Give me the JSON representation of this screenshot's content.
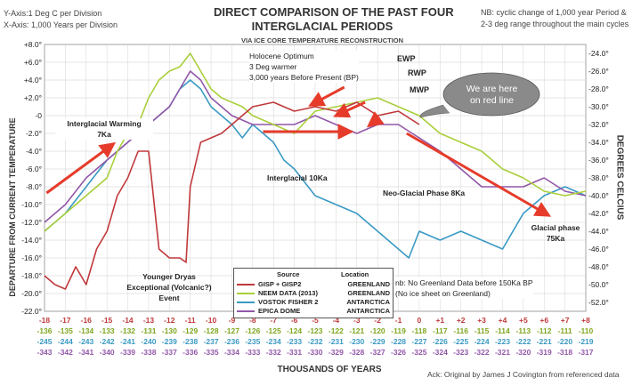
{
  "header": {
    "title_line1": "DIRECT COMPARISON OF THE PAST FOUR",
    "title_line2": "INTERGLACIAL PERIODS",
    "subtitle": "VIA ICE CORE TEMPERATURE RECONSTRUCTION",
    "scale_note_y": "Y-Axis:1 Deg C per Division",
    "scale_note_x": "X-Axis: 1,000 Years per Division",
    "nb_note_line1": "NB: cyclic change of 1,000 year Period &",
    "nb_note_line2": "2-3 deg range throughout the main cycles"
  },
  "footer": {
    "xlabel": "THOUSANDS OF YEARS",
    "ack": "Ack: Original by James J Covington from referenced data"
  },
  "colors": {
    "gisp": "#c0393b",
    "neem": "#a9cf3a",
    "vostok": "#3a9ac4",
    "epica": "#9257a8",
    "arrow": "#e63b2a",
    "background": "#ffffff"
  },
  "chart_data": {
    "type": "line",
    "title": "DIRECT COMPARISON OF THE PAST FOUR INTERGLACIAL PERIODS",
    "subtitle": "VIA ICE CORE TEMPERATURE RECONSTRUCTION",
    "xlabel": "THOUSANDS OF YEARS",
    "ylabel": "DEPARTURE FROM CURRENT TEMPERATURE",
    "ylabel_right": "DEGREES CELCIUS",
    "x_range": [
      -18,
      8
    ],
    "ylim": [
      -22,
      8
    ],
    "grid": true,
    "y_ticks": [
      "+8.0°",
      "+6.0°",
      "+4.0°",
      "+2.0°",
      "-0",
      "-2.0°",
      "-4.0°",
      "-6.0°",
      "-8.0°",
      "-10.0°",
      "-12.0°",
      "-14.0°",
      "-16.0°",
      "-18.0°",
      "-20.0°",
      "-22.0°"
    ],
    "y_ticks_right": [
      "-24.0°",
      "-26.0°",
      "-28.0°",
      "-30.0°",
      "-32.0°",
      "-34.0°",
      "-36.0°",
      "-38.0°",
      "-40.0°",
      "-42.0°",
      "-44.0°",
      "-46.0°",
      "-48.0°",
      "-50.0°",
      "-52.0°"
    ],
    "x_tick_rows": [
      {
        "series": "GISP + GISP2",
        "labels": [
          "-18",
          "-17",
          "-16",
          "-15",
          "-14",
          "-13",
          "-12",
          "-11",
          "-10",
          "-9",
          "-8",
          "-7",
          "-6",
          "-5",
          "-4",
          "-3",
          "-2",
          "-1",
          "0",
          "+1",
          "+2",
          "+3",
          "+4",
          "+5",
          "+6",
          "+7",
          "+8"
        ]
      },
      {
        "series": "NEEM DATA (2013)",
        "labels": [
          "-136",
          "-135",
          "-134",
          "-133",
          "-132",
          "-131",
          "-130",
          "-129",
          "-128",
          "-127",
          "-126",
          "-125",
          "-124",
          "-123",
          "-122",
          "-121",
          "-120",
          "-119",
          "-118",
          "-117",
          "-116",
          "-115",
          "-114",
          "-113",
          "-112",
          "-111",
          "-110"
        ]
      },
      {
        "series": "VOSTOK FISHER 2",
        "labels": [
          "-245",
          "-244",
          "-243",
          "-242",
          "-241",
          "-240",
          "-239",
          "-238",
          "-237",
          "-236",
          "-235",
          "-234",
          "-233",
          "-232",
          "-231",
          "-230",
          "-229",
          "-228",
          "-227",
          "-226",
          "-225",
          "-224",
          "-223",
          "-222",
          "-221",
          "-220",
          "-219"
        ]
      },
      {
        "series": "EPICA DOME",
        "labels": [
          "-343",
          "-342",
          "-341",
          "-340",
          "-339",
          "-338",
          "-337",
          "-336",
          "-335",
          "-334",
          "-333",
          "-332",
          "-331",
          "-330",
          "-329",
          "-328",
          "-327",
          "-326",
          "-325",
          "-324",
          "-323",
          "-322",
          "-321",
          "-320",
          "-319",
          "-318",
          "-317"
        ]
      }
    ],
    "legend": {
      "header_source": "Source",
      "header_location": "Location",
      "entries": [
        {
          "name": "GISP + GISP2",
          "location": "GREENLAND"
        },
        {
          "name": "NEEM DATA (2013)",
          "location": "GREENLAND"
        },
        {
          "name": "VOSTOK FISHER 2",
          "location": "ANTARCTICA"
        },
        {
          "name": "EPICA DOME",
          "location": "ANTARCTICA"
        }
      ]
    },
    "series": [
      {
        "name": "GISP + GISP2",
        "x": [
          -18,
          -17.5,
          -17,
          -16.5,
          -16,
          -15.5,
          -15,
          -14.5,
          -14,
          -13.5,
          -13,
          -12.5,
          -12,
          -11.5,
          -11.2,
          -11,
          -10.5,
          -10,
          -9.5,
          -9,
          -8,
          -7,
          -6,
          -5,
          -4,
          -3,
          -2,
          -1,
          0
        ],
        "y": [
          -18,
          -19,
          -19.5,
          -17,
          -19,
          -15,
          -13,
          -9,
          -7,
          -4,
          -4,
          -15,
          -16,
          -16,
          -16.5,
          -8,
          -3,
          -2.5,
          -2,
          -1,
          1,
          1.5,
          0.5,
          1,
          0.5,
          1.5,
          0,
          0.5,
          -1
        ]
      },
      {
        "name": "NEEM DATA (2013)",
        "x": [
          -18,
          -17,
          -16,
          -15,
          -14.5,
          -14,
          -13.5,
          -13,
          -12.5,
          -12,
          -11.5,
          -11,
          -10.5,
          -10,
          -9.5,
          -9,
          -8.5,
          -8,
          -7,
          -6,
          -5,
          -4,
          -3,
          -2,
          -1,
          0,
          1,
          2,
          3,
          4,
          5,
          6,
          7,
          8
        ],
        "y": [
          -13,
          -11,
          -9,
          -7,
          -4,
          -2,
          -1,
          2,
          4,
          5,
          5.5,
          7,
          5,
          3,
          2,
          1.5,
          1,
          0,
          -1,
          -2,
          0.5,
          1,
          1.5,
          2,
          1,
          0,
          -2,
          -3,
          -4,
          -6,
          -7,
          -8.5,
          -9,
          -8.5
        ]
      },
      {
        "name": "VOSTOK FISHER 2",
        "x": [
          -18,
          -17,
          -16,
          -15,
          -14,
          -13,
          -12,
          -11.5,
          -11,
          -10.5,
          -10,
          -9.5,
          -9,
          -8.5,
          -8,
          -7.5,
          -7,
          -6.5,
          -6,
          -5.5,
          -5,
          -4,
          -3,
          -2,
          -1,
          -0.5,
          0,
          1,
          2,
          3,
          4,
          5,
          6,
          7,
          8
        ],
        "y": [
          -13,
          -11,
          -8,
          -5,
          -3,
          -1,
          1,
          3,
          4,
          3,
          1,
          0,
          -1,
          -2.5,
          -1,
          -2,
          -3,
          -5,
          -6,
          -7.5,
          -9,
          -10,
          -11,
          -13,
          -15,
          -16,
          -13,
          -14,
          -13,
          -14,
          -15,
          -11,
          -9,
          -8,
          -9
        ]
      },
      {
        "name": "EPICA DOME",
        "x": [
          -18,
          -17,
          -16,
          -15,
          -14,
          -13,
          -12,
          -11.5,
          -11,
          -10.5,
          -10,
          -9.5,
          -9,
          -8,
          -7,
          -6,
          -5,
          -4,
          -3,
          -2,
          -1,
          0,
          1,
          2,
          3,
          4,
          5,
          6,
          7,
          8
        ],
        "y": [
          -12,
          -10,
          -7,
          -5,
          -3,
          -1,
          1,
          3,
          5,
          4,
          2,
          1,
          0,
          -1,
          -1,
          -1,
          0,
          -1,
          -2,
          -1,
          -1,
          -2.5,
          -4,
          -6,
          -8,
          -8,
          -8,
          -7,
          -8.5,
          -9
        ]
      }
    ],
    "annotations": [
      {
        "id": "holocene",
        "lines": [
          "Holocene Optimum",
          "3 Deg warmer",
          "3,000 years Before Present (BP)"
        ]
      },
      {
        "id": "ewp",
        "text": "EWP"
      },
      {
        "id": "rwp",
        "text": "RWP"
      },
      {
        "id": "mwp",
        "text": "MWP"
      },
      {
        "id": "callout",
        "lines": [
          "We are here",
          "on red line"
        ]
      },
      {
        "id": "ig_warming",
        "lines": [
          "Interglacial Warming",
          "7Ka"
        ]
      },
      {
        "id": "ig_10",
        "text": "Interglacial 10Ka"
      },
      {
        "id": "neo",
        "text": "Neo-Glacial Phase 8Ka"
      },
      {
        "id": "glacial",
        "lines": [
          "Glacial phase",
          "75Ka"
        ]
      },
      {
        "id": "younger",
        "lines": [
          "Younger Dryas",
          "Exceptional (Volcanic?)",
          "Event"
        ]
      },
      {
        "id": "nb_green",
        "lines": [
          "nb: No Greenland Data before 150Ka BP",
          "(No ice sheet on Greenland)"
        ]
      }
    ]
  }
}
